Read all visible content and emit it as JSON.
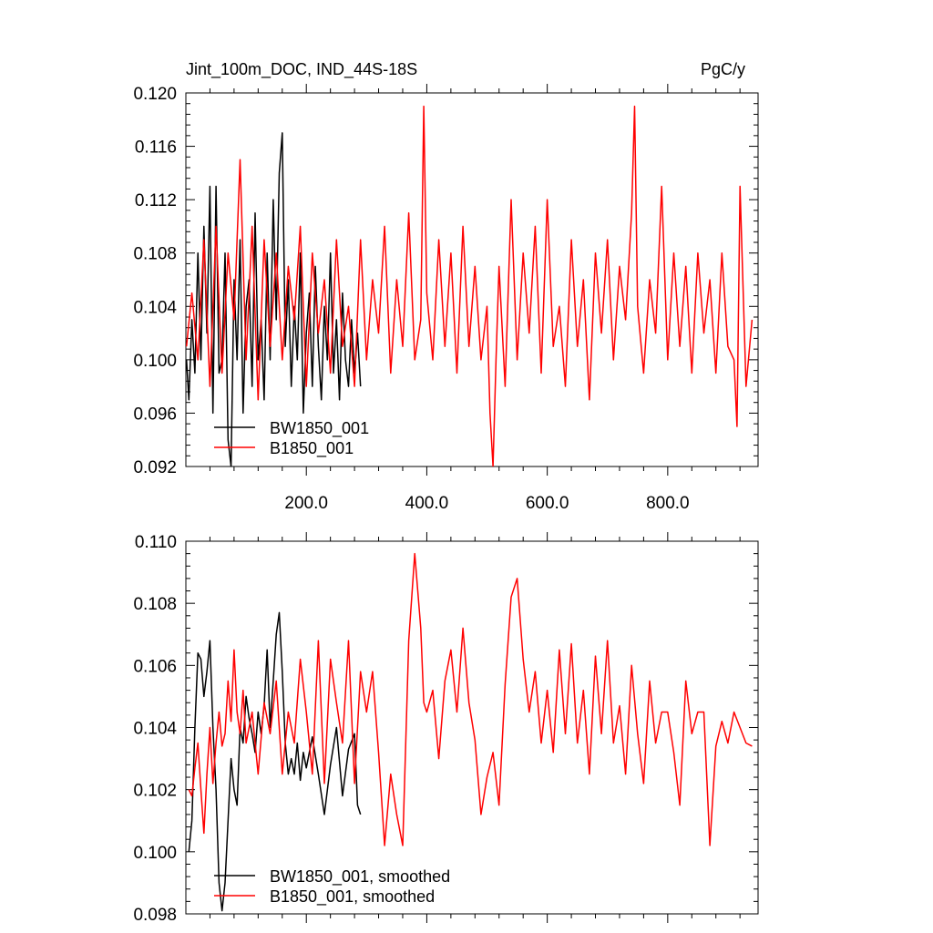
{
  "chart_data": [
    {
      "type": "line",
      "title_left": "Jint_100m_DOC, IND_44S-18S",
      "title_right": "PgC/y",
      "xlim": [
        0,
        950
      ],
      "ylim": [
        0.092,
        0.12
      ],
      "xticks": [
        200,
        400,
        600,
        800
      ],
      "xtick_labels": [
        "200.0",
        "400.0",
        "600.0",
        "800.0"
      ],
      "yticks": [
        0.092,
        0.096,
        0.1,
        0.104,
        0.108,
        0.112,
        0.116,
        0.12
      ],
      "ytick_labels": [
        "0.092",
        "0.096",
        "0.100",
        "0.104",
        "0.108",
        "0.112",
        "0.116",
        "0.120"
      ],
      "legend_position": "bottom-left",
      "series": [
        {
          "name": "BW1850_001",
          "color": "#000000",
          "x": [
            1,
            5,
            10,
            15,
            20,
            25,
            30,
            35,
            40,
            45,
            50,
            55,
            60,
            65,
            70,
            75,
            80,
            85,
            90,
            95,
            100,
            105,
            110,
            115,
            120,
            125,
            130,
            135,
            140,
            145,
            150,
            155,
            160,
            165,
            170,
            175,
            180,
            185,
            190,
            195,
            200,
            205,
            210,
            215,
            220,
            225,
            230,
            235,
            240,
            245,
            250,
            255,
            260,
            265,
            270,
            275,
            280,
            285,
            290
          ],
          "values": [
            0.1,
            0.097,
            0.103,
            0.099,
            0.108,
            0.1,
            0.11,
            0.102,
            0.113,
            0.096,
            0.113,
            0.099,
            0.1,
            0.108,
            0.094,
            0.092,
            0.106,
            0.1,
            0.109,
            0.096,
            0.104,
            0.106,
            0.098,
            0.111,
            0.1,
            0.103,
            0.097,
            0.108,
            0.1,
            0.112,
            0.103,
            0.114,
            0.117,
            0.101,
            0.106,
            0.098,
            0.104,
            0.1,
            0.108,
            0.096,
            0.102,
            0.105,
            0.098,
            0.107,
            0.101,
            0.097,
            0.104,
            0.1,
            0.108,
            0.099,
            0.103,
            0.097,
            0.105,
            0.1,
            0.098,
            0.103,
            0.099,
            0.102,
            0.098
          ]
        },
        {
          "name": "B1850_001",
          "color": "#ff0000",
          "x": [
            1,
            10,
            20,
            30,
            40,
            50,
            60,
            70,
            80,
            90,
            100,
            110,
            120,
            130,
            140,
            150,
            160,
            170,
            180,
            190,
            200,
            210,
            220,
            230,
            240,
            250,
            260,
            270,
            280,
            290,
            300,
            310,
            320,
            330,
            340,
            350,
            360,
            370,
            380,
            390,
            395,
            400,
            410,
            420,
            430,
            440,
            450,
            460,
            470,
            480,
            490,
            500,
            505,
            510,
            515,
            520,
            530,
            540,
            550,
            560,
            570,
            580,
            590,
            600,
            610,
            620,
            630,
            640,
            650,
            660,
            670,
            680,
            690,
            700,
            710,
            720,
            730,
            740,
            745,
            750,
            760,
            770,
            780,
            790,
            800,
            810,
            820,
            830,
            840,
            850,
            860,
            870,
            880,
            890,
            900,
            910,
            915,
            920,
            930,
            940
          ],
          "values": [
            0.101,
            0.105,
            0.1,
            0.109,
            0.098,
            0.11,
            0.099,
            0.108,
            0.103,
            0.115,
            0.1,
            0.11,
            0.097,
            0.109,
            0.101,
            0.108,
            0.1,
            0.107,
            0.103,
            0.11,
            0.098,
            0.108,
            0.102,
            0.106,
            0.099,
            0.109,
            0.101,
            0.104,
            0.098,
            0.109,
            0.1,
            0.106,
            0.102,
            0.11,
            0.099,
            0.106,
            0.101,
            0.111,
            0.1,
            0.103,
            0.119,
            0.105,
            0.1,
            0.109,
            0.101,
            0.108,
            0.099,
            0.11,
            0.101,
            0.107,
            0.1,
            0.104,
            0.096,
            0.092,
            0.1,
            0.107,
            0.098,
            0.112,
            0.1,
            0.108,
            0.102,
            0.11,
            0.099,
            0.112,
            0.101,
            0.104,
            0.098,
            0.109,
            0.101,
            0.106,
            0.097,
            0.108,
            0.102,
            0.109,
            0.1,
            0.107,
            0.103,
            0.111,
            0.119,
            0.104,
            0.099,
            0.106,
            0.102,
            0.113,
            0.1,
            0.108,
            0.101,
            0.107,
            0.099,
            0.108,
            0.102,
            0.106,
            0.099,
            0.108,
            0.101,
            0.1,
            0.095,
            0.113,
            0.098,
            0.103
          ]
        }
      ]
    },
    {
      "type": "line",
      "xlim": [
        0,
        950
      ],
      "ylim": [
        0.098,
        0.11
      ],
      "xticks": [
        200,
        400,
        600,
        800
      ],
      "yticks": [
        0.098,
        0.1,
        0.102,
        0.104,
        0.106,
        0.108,
        0.11
      ],
      "ytick_labels": [
        "0.098",
        "0.100",
        "0.102",
        "0.104",
        "0.106",
        "0.108",
        "0.110"
      ],
      "legend_position": "bottom-left",
      "series": [
        {
          "name": "BW1850_001, smoothed",
          "color": "#000000",
          "x": [
            5,
            10,
            15,
            20,
            25,
            30,
            35,
            40,
            45,
            50,
            55,
            60,
            65,
            70,
            75,
            80,
            85,
            90,
            95,
            100,
            105,
            110,
            115,
            120,
            125,
            130,
            135,
            140,
            145,
            150,
            155,
            160,
            165,
            170,
            175,
            180,
            185,
            190,
            195,
            200,
            210,
            220,
            230,
            240,
            250,
            260,
            270,
            280,
            285,
            290
          ],
          "values": [
            0.1,
            0.101,
            0.104,
            0.1064,
            0.1062,
            0.105,
            0.1058,
            0.1068,
            0.104,
            0.102,
            0.099,
            0.0981,
            0.099,
            0.101,
            0.103,
            0.102,
            0.1015,
            0.104,
            0.1035,
            0.105,
            0.1043,
            0.1038,
            0.1032,
            0.1045,
            0.1038,
            0.1047,
            0.1065,
            0.104,
            0.1055,
            0.107,
            0.1077,
            0.1058,
            0.1035,
            0.1025,
            0.103,
            0.1025,
            0.1035,
            0.1023,
            0.1032,
            0.1027,
            0.1037,
            0.1025,
            0.1012,
            0.1028,
            0.104,
            0.1018,
            0.1033,
            0.1038,
            0.1015,
            0.1012
          ]
        },
        {
          "name": "B1850_001, smoothed",
          "color": "#ff0000",
          "x": [
            5,
            10,
            15,
            20,
            25,
            30,
            35,
            40,
            45,
            50,
            55,
            60,
            65,
            70,
            75,
            80,
            85,
            90,
            95,
            100,
            110,
            120,
            130,
            140,
            150,
            160,
            170,
            180,
            190,
            200,
            210,
            220,
            230,
            240,
            250,
            260,
            270,
            280,
            290,
            300,
            310,
            320,
            330,
            340,
            350,
            360,
            370,
            380,
            390,
            395,
            400,
            410,
            420,
            430,
            440,
            450,
            460,
            470,
            480,
            490,
            500,
            510,
            520,
            530,
            540,
            550,
            560,
            570,
            580,
            590,
            600,
            610,
            620,
            630,
            640,
            650,
            660,
            670,
            680,
            690,
            700,
            710,
            720,
            730,
            740,
            750,
            760,
            770,
            780,
            790,
            800,
            810,
            820,
            830,
            840,
            850,
            860,
            870,
            880,
            890,
            900,
            910,
            920,
            930,
            940
          ],
          "values": [
            0.102,
            0.1018,
            0.1027,
            0.1035,
            0.102,
            0.1006,
            0.1025,
            0.104,
            0.1022,
            0.1035,
            0.1045,
            0.1034,
            0.1038,
            0.1055,
            0.1042,
            0.1065,
            0.1045,
            0.1038,
            0.1052,
            0.1035,
            0.1045,
            0.1025,
            0.1048,
            0.1038,
            0.1055,
            0.1025,
            0.1045,
            0.1035,
            0.1062,
            0.1045,
            0.1025,
            0.1068,
            0.1022,
            0.1062,
            0.1048,
            0.1035,
            0.1068,
            0.1022,
            0.1058,
            0.1045,
            0.1058,
            0.1032,
            0.1002,
            0.1025,
            0.1012,
            0.1002,
            0.1068,
            0.1096,
            0.1072,
            0.1048,
            0.1045,
            0.1052,
            0.103,
            0.1055,
            0.1065,
            0.1045,
            0.1072,
            0.1048,
            0.1036,
            0.1012,
            0.1024,
            0.1032,
            0.1015,
            0.1054,
            0.1082,
            0.1088,
            0.1062,
            0.1045,
            0.1058,
            0.1035,
            0.1052,
            0.1032,
            0.1065,
            0.1038,
            0.1067,
            0.1035,
            0.1052,
            0.1025,
            0.1063,
            0.1038,
            0.1068,
            0.1035,
            0.1047,
            0.1025,
            0.106,
            0.1038,
            0.1022,
            0.1055,
            0.1035,
            0.1045,
            0.1045,
            0.1032,
            0.1015,
            0.1055,
            0.1038,
            0.1045,
            0.1045,
            0.1002,
            0.1034,
            0.1042,
            0.1035,
            0.1045,
            0.104,
            0.1035,
            0.1034
          ]
        }
      ]
    }
  ]
}
